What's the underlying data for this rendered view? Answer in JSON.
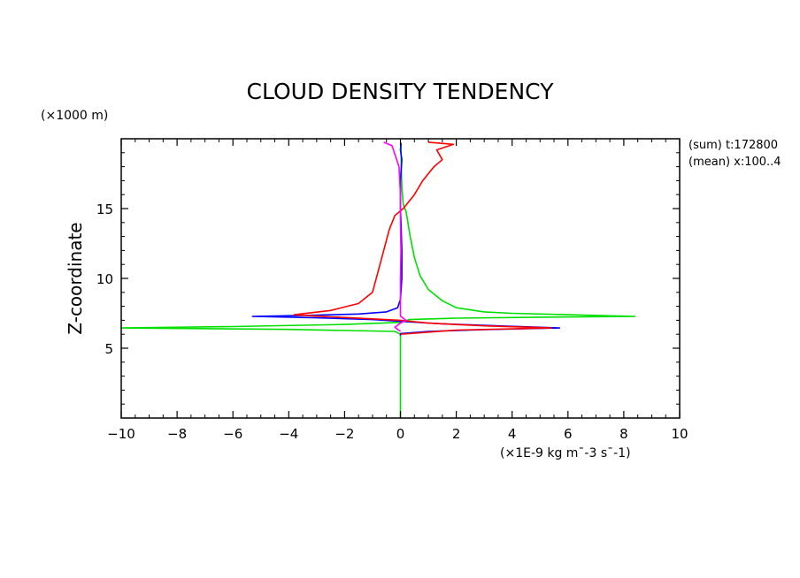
{
  "chart_data": {
    "type": "line",
    "title": "CLOUD DENSITY TENDENCY",
    "ylabel": "Z-coordinate",
    "y_unit": "(×1000 m)",
    "x_unit": "(×1E-9 kg m¯-3 s¯-1)",
    "annotations": [
      "(sum) t:172800",
      "(mean) x:100..4"
    ],
    "xlim": [
      -10,
      10
    ],
    "ylim": [
      0,
      20
    ],
    "x_ticks": [
      -10,
      -8,
      -6,
      -4,
      -2,
      0,
      2,
      4,
      6,
      8,
      10
    ],
    "x_tick_labels": [
      "−10",
      "−8",
      "−6",
      "−4",
      "−2",
      "0",
      "2",
      "4",
      "6",
      "8",
      "10"
    ],
    "y_ticks": [
      5,
      10,
      15
    ],
    "y_tick_labels": [
      "5",
      "10",
      "15"
    ],
    "grid": false,
    "series": [
      {
        "color": "#00e000",
        "points": [
          [
            0,
            0
          ],
          [
            0,
            2
          ],
          [
            0,
            4
          ],
          [
            0,
            5.5
          ],
          [
            0,
            6.0
          ],
          [
            -0.2,
            6.2
          ],
          [
            -4,
            6.35
          ],
          [
            -10,
            6.45
          ],
          [
            -6,
            6.55
          ],
          [
            -2,
            6.7
          ],
          [
            0,
            6.85
          ],
          [
            0.3,
            7.05
          ],
          [
            2,
            7.15
          ],
          [
            5,
            7.22
          ],
          [
            8.4,
            7.28
          ],
          [
            6,
            7.4
          ],
          [
            4,
            7.5
          ],
          [
            3,
            7.6
          ],
          [
            2,
            7.9
          ],
          [
            1.5,
            8.4
          ],
          [
            1.0,
            9.2
          ],
          [
            0.7,
            10.2
          ],
          [
            0.5,
            11.5
          ],
          [
            0.35,
            13
          ],
          [
            0.25,
            14.2
          ],
          [
            0.2,
            14.8
          ],
          [
            0.1,
            15.3
          ],
          [
            0.05,
            16.5
          ],
          [
            0.03,
            18
          ],
          [
            0.02,
            19.7
          ]
        ]
      },
      {
        "color": "#0000ff",
        "points": [
          [
            0,
            5.9
          ],
          [
            0,
            6.05
          ],
          [
            1,
            6.2
          ],
          [
            3,
            6.33
          ],
          [
            5.7,
            6.45
          ],
          [
            3.5,
            6.6
          ],
          [
            1.5,
            6.75
          ],
          [
            0.2,
            6.9
          ],
          [
            -1,
            7.05
          ],
          [
            -3,
            7.18
          ],
          [
            -5.3,
            7.28
          ],
          [
            -3.5,
            7.35
          ],
          [
            -1.5,
            7.45
          ],
          [
            -0.5,
            7.6
          ],
          [
            -0.1,
            7.9
          ],
          [
            0,
            8.5
          ],
          [
            0.05,
            10
          ],
          [
            0.05,
            12
          ],
          [
            0.02,
            14
          ],
          [
            0,
            15
          ],
          [
            0,
            17
          ],
          [
            0.05,
            18.5
          ],
          [
            0,
            19.2
          ],
          [
            0.02,
            19.7
          ]
        ]
      },
      {
        "color": "#ff0000",
        "points": [
          [
            0,
            6.0
          ],
          [
            1,
            6.15
          ],
          [
            2,
            6.3
          ],
          [
            5.4,
            6.45
          ],
          [
            3,
            6.6
          ],
          [
            1,
            6.8
          ],
          [
            0,
            7.0
          ],
          [
            -1,
            7.1
          ],
          [
            -3,
            7.3
          ],
          [
            -3.8,
            7.4
          ],
          [
            -2.5,
            7.7
          ],
          [
            -1.5,
            8.2
          ],
          [
            -1.0,
            9.0
          ],
          [
            -0.8,
            10.5
          ],
          [
            -0.6,
            12.0
          ],
          [
            -0.4,
            13.5
          ],
          [
            -0.2,
            14.5
          ],
          [
            0.1,
            15.0
          ],
          [
            0.5,
            16.0
          ],
          [
            0.8,
            17.0
          ],
          [
            1.2,
            18.0
          ],
          [
            1.5,
            18.5
          ],
          [
            1.3,
            19.2
          ],
          [
            1.9,
            19.6
          ],
          [
            1.0,
            19.75
          ]
        ]
      },
      {
        "color": "#ff00ff",
        "points": [
          [
            0,
            6.2
          ],
          [
            -0.2,
            6.5
          ],
          [
            0,
            6.8
          ],
          [
            0.2,
            7.0
          ],
          [
            0,
            7.3
          ],
          [
            0,
            8
          ],
          [
            0,
            10
          ],
          [
            0.02,
            12
          ],
          [
            0,
            14
          ],
          [
            0,
            16
          ],
          [
            -0.05,
            18
          ],
          [
            -0.3,
            19.5
          ],
          [
            -0.6,
            19.75
          ]
        ]
      }
    ]
  }
}
